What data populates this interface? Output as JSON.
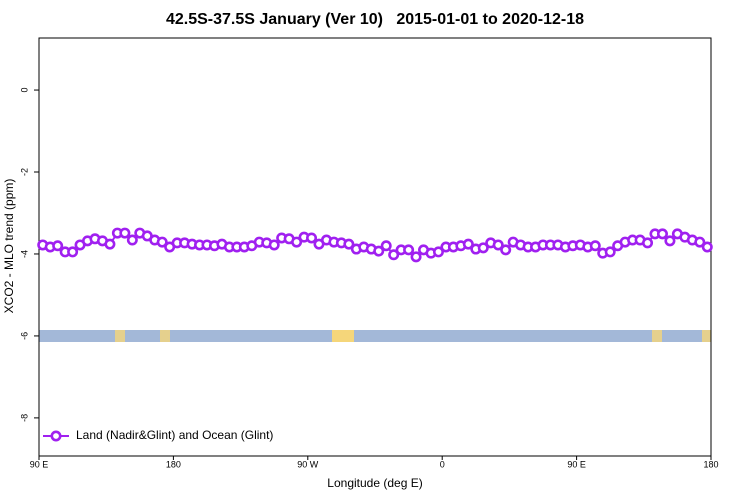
{
  "chart_data": {
    "type": "line",
    "title": "42.5S-37.5S January (Ver 10)   2015-01-01 to 2020-12-18",
    "x_label": "Longitude (deg E)",
    "y_label": "XCO2 - MLO trend (ppm)",
    "xlim": [
      90,
      540
    ],
    "ylim": [
      -8.93,
      1.27
    ],
    "xticks": [
      {
        "value": 90,
        "label": "90 E"
      },
      180,
      {
        "value": 270,
        "label": "90 W"
      },
      {
        "value": 360,
        "label": "0"
      },
      {
        "value": 450,
        "label": "90 E"
      },
      {
        "value": 540,
        "label": "180"
      }
    ],
    "yticks": [
      0,
      -2,
      -4,
      -6,
      -8
    ],
    "legend": "bottom-left",
    "x": [
      92.5,
      97.5,
      102.5,
      107.5,
      112.5,
      117.5,
      122.5,
      127.5,
      132.5,
      137.5,
      142.5,
      147.5,
      152.5,
      157.5,
      162.5,
      167.5,
      172.5,
      177.5,
      182.5,
      187.5,
      192.5,
      197.5,
      202.5,
      207.5,
      212.5,
      217.5,
      222.5,
      227.5,
      232.5,
      237.5,
      242.5,
      247.5,
      252.5,
      257.5,
      262.5,
      267.5,
      272.5,
      277.5,
      282.5,
      287.5,
      292.5,
      297.5,
      302.5,
      307.5,
      312.5,
      317.5,
      322.5,
      327.5,
      332.5,
      337.5,
      342.5,
      347.5,
      352.5,
      357.5,
      362.5,
      367.5,
      372.5,
      377.5,
      382.5,
      387.5,
      392.5,
      397.5,
      402.5,
      407.5,
      412.5,
      417.5,
      422.5,
      427.5,
      432.5,
      437.5,
      442.5,
      447.5,
      452.5,
      457.5,
      462.5,
      467.5,
      472.5,
      477.5,
      482.5,
      487.5,
      492.5,
      497.5,
      502.5,
      507.5,
      512.5,
      517.5,
      522.5,
      527.5,
      532.5,
      537.5
    ],
    "series": [
      {
        "name": "Land (Nadir&Glint) and Ocean (Glint)",
        "color": "#a020f0",
        "values": [
          -3.78,
          -3.83,
          -3.8,
          -3.95,
          -3.95,
          -3.78,
          -3.68,
          -3.63,
          -3.68,
          -3.76,
          -3.49,
          -3.49,
          -3.66,
          -3.49,
          -3.56,
          -3.66,
          -3.71,
          -3.83,
          -3.73,
          -3.73,
          -3.76,
          -3.78,
          -3.78,
          -3.8,
          -3.76,
          -3.83,
          -3.83,
          -3.83,
          -3.8,
          -3.71,
          -3.73,
          -3.78,
          -3.61,
          -3.63,
          -3.71,
          -3.59,
          -3.61,
          -3.76,
          -3.66,
          -3.71,
          -3.73,
          -3.76,
          -3.88,
          -3.83,
          -3.88,
          -3.93,
          -3.8,
          -4.02,
          -3.9,
          -3.9,
          -4.07,
          -3.9,
          -3.98,
          -3.95,
          -3.83,
          -3.83,
          -3.8,
          -3.76,
          -3.88,
          -3.85,
          -3.73,
          -3.78,
          -3.9,
          -3.71,
          -3.78,
          -3.83,
          -3.83,
          -3.78,
          -3.78,
          -3.78,
          -3.83,
          -3.8,
          -3.78,
          -3.83,
          -3.8,
          -3.98,
          -3.95,
          -3.8,
          -3.71,
          -3.66,
          -3.66,
          -3.73,
          -3.51,
          -3.51,
          -3.68,
          -3.51,
          -3.59,
          -3.66,
          -3.71,
          -3.83
        ]
      }
    ]
  }
}
